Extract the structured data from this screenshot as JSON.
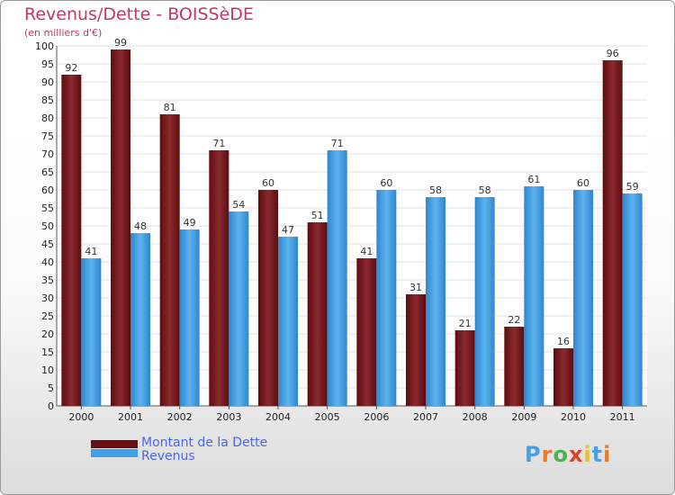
{
  "header": {
    "title": "Revenus/Dette - BOISSèDE",
    "subtitle": "(en milliers d'€)"
  },
  "chart_data": {
    "type": "bar",
    "title": "Revenus/Dette - BOISSèDE",
    "subtitle": "(en milliers d'€)",
    "categories": [
      "2000",
      "2001",
      "2002",
      "2003",
      "2004",
      "2005",
      "2006",
      "2007",
      "2008",
      "2009",
      "2010",
      "2011"
    ],
    "series": [
      {
        "name": "Montant de la Dette",
        "color": "#7a1a1e",
        "values": [
          92,
          99,
          81,
          71,
          60,
          51,
          41,
          31,
          21,
          22,
          16,
          96
        ]
      },
      {
        "name": "Revenus",
        "color": "#3f9ee6",
        "values": [
          41,
          48,
          49,
          54,
          47,
          71,
          60,
          58,
          58,
          61,
          60,
          59
        ]
      }
    ],
    "ylim": [
      0,
      100
    ],
    "ytick_step": 5,
    "grid": true,
    "legend_position": "bottom-left"
  },
  "legend": {
    "items": [
      {
        "label": "Montant de la Dette",
        "color": "#6a0f12"
      },
      {
        "label": "Revenus",
        "color": "#3f9ee6"
      }
    ]
  },
  "logo": {
    "letters": [
      "P",
      "r",
      "o",
      "x",
      "i",
      "t",
      "i"
    ],
    "colors": [
      "#4aa0e0",
      "#e87b2a",
      "#4fb04f",
      "#d8432f",
      "#e8c02a",
      "#4aa0e0",
      "#e87b2a"
    ]
  }
}
